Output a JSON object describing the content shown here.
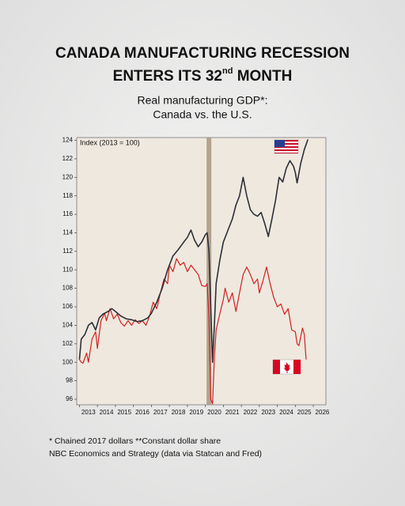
{
  "header": {
    "title_line1": "CANADA MANUFACTURING RECESSION",
    "title_line2": [
      "ENTERS ITS 32",
      "nd",
      " MONTH"
    ]
  },
  "chart_data": {
    "type": "line",
    "title": [
      "Real manufacturing GDP*:",
      "Canada vs. the U.S."
    ],
    "y_label": "Index (2013 = 100)",
    "xlim": [
      2012.85,
      2026.7
    ],
    "xticks": [
      2013,
      2014,
      2015,
      2016,
      2017,
      2018,
      2019,
      2020,
      2021,
      2022,
      2023,
      2024,
      2025,
      2026
    ],
    "ylim": [
      95.4,
      124.3
    ],
    "yticks": [
      96,
      98,
      100,
      102,
      104,
      106,
      108,
      110,
      112,
      114,
      116,
      118,
      120,
      122,
      124
    ],
    "shade_x": 2020.2,
    "series": [
      {
        "color": "#2b3038",
        "x": [
          2013.0,
          2013.1,
          2013.3,
          2013.5,
          2013.7,
          2013.9,
          2014.1,
          2014.3,
          2014.6,
          2014.8,
          2015.0,
          2015.3,
          2015.6,
          2015.9,
          2016.2,
          2016.5,
          2016.8,
          2017.0,
          2017.3,
          2017.6,
          2017.9,
          2018.2,
          2018.5,
          2018.8,
          2019.0,
          2019.2,
          2019.4,
          2019.6,
          2019.8,
          2020.0,
          2020.1,
          2020.2,
          2020.3,
          2020.4,
          2020.5,
          2020.6,
          2020.8,
          2021.0,
          2021.3,
          2021.5,
          2021.7,
          2021.9,
          2022.0,
          2022.1,
          2022.3,
          2022.5,
          2022.7,
          2022.9,
          2023.1,
          2023.3,
          2023.5,
          2023.7,
          2023.9,
          2024.1,
          2024.3,
          2024.5,
          2024.7,
          2024.9,
          2025.0,
          2025.1,
          2025.3,
          2025.5,
          2025.7
        ],
        "values": [
          100.3,
          102.5,
          103,
          104,
          104.3,
          103.5,
          104.8,
          105.2,
          105.5,
          105.8,
          105.5,
          105,
          104.7,
          104.6,
          104.4,
          104.5,
          104.8,
          105.3,
          106.5,
          108,
          110,
          111.5,
          112.2,
          113,
          113.5,
          114.3,
          113.2,
          112.5,
          113,
          113.8,
          114,
          112,
          106,
          100,
          104,
          108.5,
          111,
          113,
          114.5,
          115.5,
          117,
          118,
          119,
          120,
          118,
          116.5,
          116,
          115.8,
          116.2,
          115,
          113.6,
          115.5,
          117.5,
          120,
          119.5,
          121,
          121.8,
          121.2,
          120.5,
          119.4,
          121.5,
          123,
          124.1
        ]
      },
      {
        "color": "#d11f1f",
        "x": [
          2013.0,
          2013.1,
          2013.2,
          2013.4,
          2013.5,
          2013.7,
          2013.9,
          2014.0,
          2014.2,
          2014.4,
          2014.5,
          2014.7,
          2014.9,
          2015.1,
          2015.3,
          2015.5,
          2015.7,
          2015.9,
          2016.1,
          2016.3,
          2016.5,
          2016.7,
          2016.9,
          2017.1,
          2017.3,
          2017.5,
          2017.7,
          2017.9,
          2018.0,
          2018.2,
          2018.4,
          2018.6,
          2018.8,
          2019.0,
          2019.2,
          2019.4,
          2019.6,
          2019.8,
          2020.0,
          2020.1,
          2020.2,
          2020.3,
          2020.4,
          2020.5,
          2020.6,
          2020.8,
          2021.0,
          2021.1,
          2021.3,
          2021.5,
          2021.7,
          2021.9,
          2022.1,
          2022.3,
          2022.5,
          2022.7,
          2022.9,
          2023.0,
          2023.2,
          2023.4,
          2023.6,
          2023.8,
          2024.0,
          2024.2,
          2024.4,
          2024.6,
          2024.8,
          2025.0,
          2025.1,
          2025.2,
          2025.4,
          2025.5,
          2025.6
        ],
        "values": [
          100.3,
          100,
          99.9,
          101,
          100,
          102.5,
          103.3,
          101.5,
          104.5,
          105.3,
          104.5,
          105.8,
          104.7,
          105.2,
          104.3,
          103.9,
          104.5,
          104,
          104.6,
          104.2,
          104.5,
          104,
          105,
          106.5,
          105.8,
          107.5,
          109,
          108.5,
          110.5,
          109.8,
          111.2,
          110.5,
          110.8,
          109.8,
          110.5,
          110,
          109.5,
          108.3,
          108.2,
          108.5,
          105,
          96,
          95.5,
          100.5,
          103.5,
          105.2,
          106.8,
          108,
          106.5,
          107.5,
          105.5,
          107.5,
          109.5,
          110.3,
          109.5,
          108.5,
          109,
          107.5,
          108.8,
          110.3,
          108.5,
          107,
          106,
          106.3,
          105.2,
          105.8,
          103.5,
          103.3,
          102,
          101.8,
          103.7,
          103,
          100.3
        ]
      }
    ]
  },
  "footer": {
    "lines": [
      "* Chained 2017 dollars **Constant dollar share",
      "NBC Economics and Strategy (data via Statcan and Fred)"
    ]
  }
}
